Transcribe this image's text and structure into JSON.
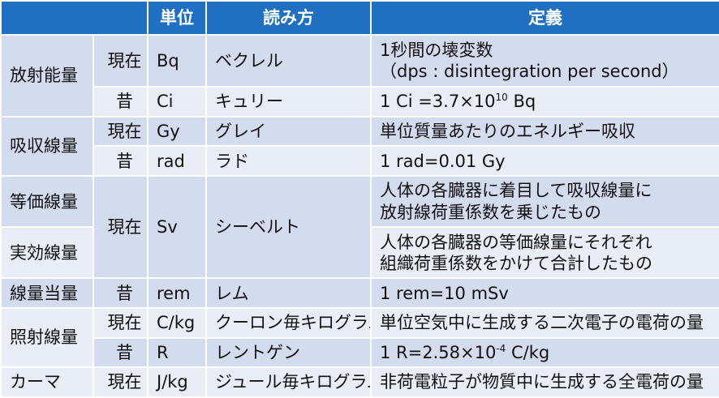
{
  "header": {
    "blank": "",
    "unit": "単位",
    "reading": "読み方",
    "definition": "定義"
  },
  "rows": {
    "radioactivity": {
      "quantity": "放射能量",
      "current": {
        "era": "現在",
        "unit": "Bq",
        "reading": "ベクレル",
        "def_line1": "1秒間の壊変数",
        "def_line2": "（dps : disintegration per second）"
      },
      "old": {
        "era": "昔",
        "unit": "Ci",
        "reading": "キュリー",
        "def_prefix": "1 Ci =3.7×10",
        "def_exp": "10",
        "def_suffix": " Bq"
      }
    },
    "absorbed": {
      "quantity": "吸収線量",
      "current": {
        "era": "現在",
        "unit": "Gy",
        "reading": "グレイ",
        "def": "単位質量あたりのエネルギー吸収"
      },
      "old": {
        "era": "昔",
        "unit": "rad",
        "reading": "ラド",
        "def": "1 rad=0.01 Gy"
      }
    },
    "equivalent": {
      "quantity": "等価線量",
      "def_line1": "人体の各臓器に着目して吸収線量に",
      "def_line2": "放射線荷重係数を乗じたもの"
    },
    "sievert": {
      "era": "現在",
      "unit": "Sv",
      "reading": "シーベルト"
    },
    "effective": {
      "quantity": "実効線量",
      "def_line1": "人体の各臓器の等価線量にそれぞれ",
      "def_line2": "組織荷重係数をかけて合計したもの"
    },
    "dose_equivalent": {
      "quantity": "線量当量",
      "old": {
        "era": "昔",
        "unit": "rem",
        "reading": "レム",
        "def": "1 rem=10 mSv"
      }
    },
    "exposure": {
      "quantity": "照射線量",
      "current": {
        "era": "現在",
        "unit": "C/kg",
        "reading": "クーロン毎キログラム",
        "def": "単位空気中に生成する二次電子の電荷の量"
      },
      "old": {
        "era": "昔",
        "unit": "R",
        "reading": "レントゲン",
        "def_prefix": "1 R=2.58×10",
        "def_exp": "-4",
        "def_suffix": " C/kg"
      }
    },
    "kerma": {
      "quantity": "カーマ",
      "current": {
        "era": "現在",
        "unit": "J/kg",
        "reading": "ジュール毎キログラム",
        "def": "非荷電粒子が物質中に生成する全電荷の量"
      }
    }
  },
  "colors": {
    "header": "#1f6fc2",
    "row_dark": "#d3dbee",
    "row_light": "#e9edf6"
  }
}
